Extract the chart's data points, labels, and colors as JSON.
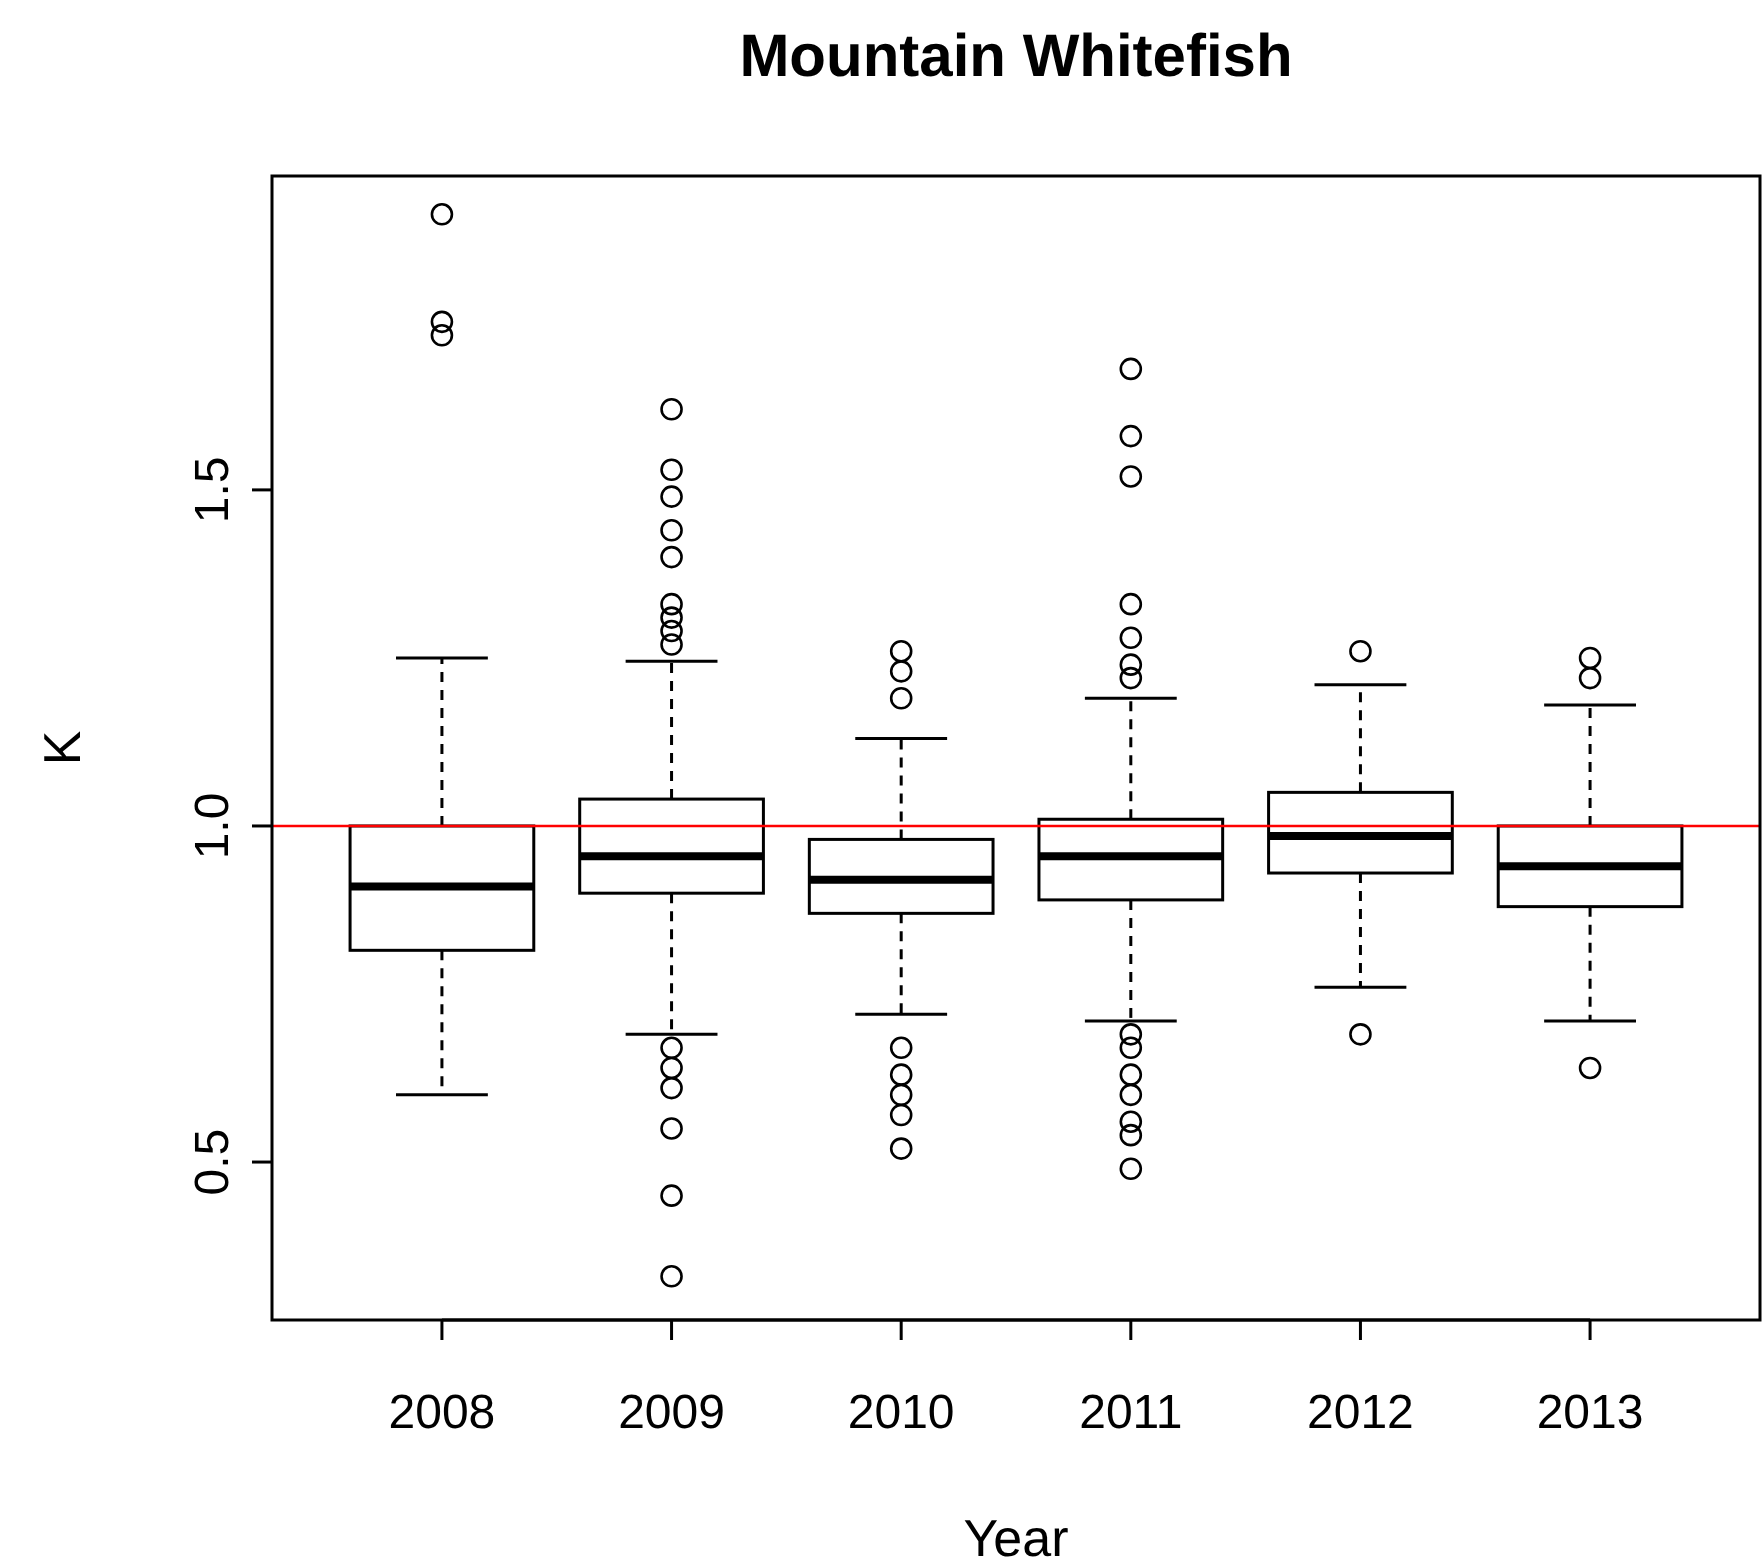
{
  "chart_data": {
    "type": "box",
    "title": "Mountain Whitefish",
    "xlabel": "Year",
    "ylabel": "K",
    "categories": [
      "2008",
      "2009",
      "2010",
      "2011",
      "2012",
      "2013"
    ],
    "boxes": [
      {
        "low": 0.6,
        "q1": 0.815,
        "median": 0.91,
        "q3": 1.0,
        "high": 1.25,
        "outliers": [
          1.91,
          1.75,
          1.73
        ]
      },
      {
        "low": 0.69,
        "q1": 0.9,
        "median": 0.955,
        "q3": 1.04,
        "high": 1.245,
        "outliers": [
          1.62,
          1.53,
          1.49,
          1.44,
          1.4,
          1.33,
          1.31,
          1.29,
          1.27,
          0.67,
          0.64,
          0.61,
          0.55,
          0.45,
          0.33
        ]
      },
      {
        "low": 0.72,
        "q1": 0.87,
        "median": 0.92,
        "q3": 0.98,
        "high": 1.13,
        "outliers": [
          1.26,
          1.23,
          1.19,
          0.67,
          0.63,
          0.6,
          0.57,
          0.52
        ]
      },
      {
        "low": 0.71,
        "q1": 0.89,
        "median": 0.955,
        "q3": 1.01,
        "high": 1.19,
        "outliers": [
          1.68,
          1.58,
          1.52,
          1.33,
          1.28,
          1.24,
          1.22,
          0.69,
          0.67,
          0.63,
          0.6,
          0.56,
          0.54,
          0.49
        ]
      },
      {
        "low": 0.76,
        "q1": 0.93,
        "median": 0.985,
        "q3": 1.05,
        "high": 1.21,
        "outliers": [
          1.26,
          0.69
        ]
      },
      {
        "low": 0.71,
        "q1": 0.88,
        "median": 0.94,
        "q3": 1.0,
        "high": 1.18,
        "outliers": [
          1.25,
          1.22,
          0.64
        ]
      }
    ],
    "ylim": [
      0.265,
      1.967
    ],
    "yticks": [
      {
        "value": 0.5,
        "label": "0.5"
      },
      {
        "value": 1.0,
        "label": "1.0"
      },
      {
        "value": 1.5,
        "label": "1.5"
      }
    ],
    "ref_lines": [
      {
        "axis": "y",
        "value": 1.0,
        "color": "#ff0000"
      }
    ]
  }
}
